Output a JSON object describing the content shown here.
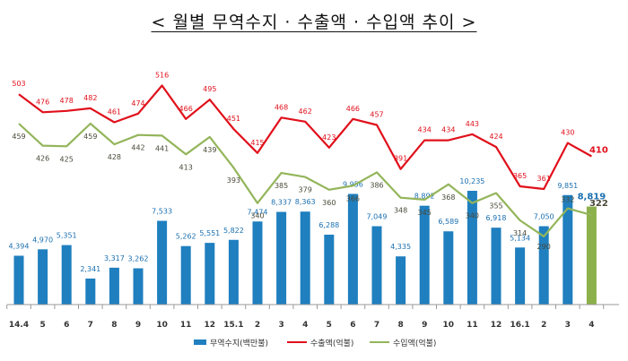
{
  "title": "< 월별 무역수지 · 수출액 · 수입액 추이 >",
  "colors": {
    "trade_balance": "#1f7fbf",
    "trade_balance_last": "#8cb04a",
    "trade_balance_label": "#1a6fb0",
    "exports": "#e0101b",
    "imports": "#93b55a",
    "imports_label": "#4a4a3a"
  },
  "chart_data": {
    "type": "bar",
    "categories": [
      "14.4",
      "5",
      "6",
      "7",
      "8",
      "9",
      "10",
      "11",
      "12",
      "15.1",
      "2",
      "3",
      "4",
      "5",
      "6",
      "7",
      "8",
      "9",
      "10",
      "11",
      "12",
      "16.1",
      "2",
      "3",
      "4"
    ],
    "series": [
      {
        "name": "무역수지(백만불)",
        "type": "bar",
        "values": [
          4394,
          4970,
          5351,
          2341,
          3317,
          3262,
          7533,
          5262,
          5551,
          5822,
          7474,
          8337,
          8363,
          6288,
          9956,
          7049,
          4335,
          8892,
          6589,
          10235,
          6918,
          5134,
          7050,
          9851,
          8819
        ],
        "labels": [
          "4,394",
          "4,970",
          "5,351",
          "2,341",
          "3,317",
          "3,262",
          "7,533",
          "5,262",
          "5,551",
          "5,822",
          "7,474",
          "8,337",
          "8,363",
          "6,288",
          "9,956",
          "7,049",
          "4,335",
          "8,892",
          "6,589",
          "10,235",
          "6,918",
          "5,134",
          "7,050",
          "9,851",
          "8,819"
        ]
      },
      {
        "name": "수출액(억불)",
        "type": "line",
        "values": [
          503,
          476,
          478,
          482,
          461,
          474,
          516,
          466,
          495,
          451,
          415,
          468,
          462,
          423,
          466,
          457,
          391,
          434,
          434,
          443,
          424,
          365,
          361,
          430,
          410
        ]
      },
      {
        "name": "수입액(억불)",
        "type": "line",
        "values": [
          459,
          426,
          425,
          459,
          428,
          442,
          441,
          413,
          439,
          393,
          340,
          385,
          379,
          360,
          366,
          386,
          348,
          345,
          368,
          340,
          355,
          314,
          290,
          332,
          322
        ]
      }
    ],
    "legend": {
      "position": "bottom",
      "items": [
        "무역수지(백만불)",
        "수출액(억불)",
        "수입액(억불)"
      ]
    },
    "grid": false
  }
}
